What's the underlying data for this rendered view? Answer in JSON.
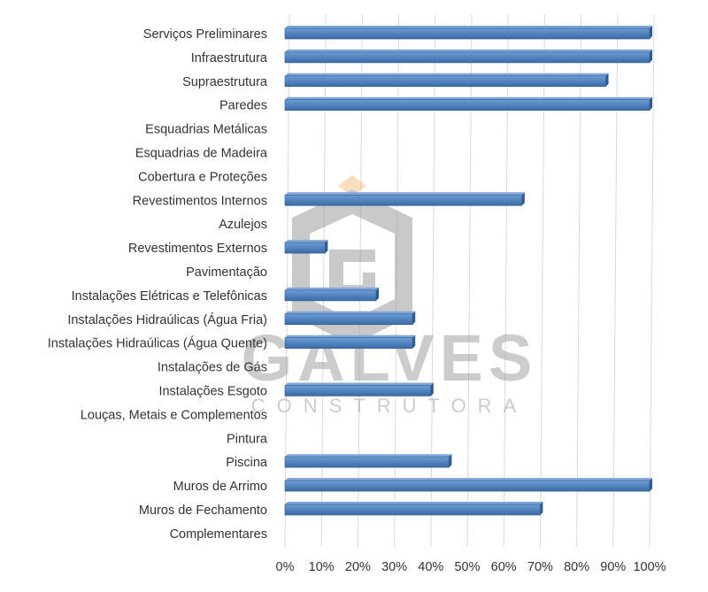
{
  "chart_data": {
    "type": "bar",
    "orientation": "horizontal",
    "categories": [
      "Serviços Preliminares",
      "Infraestrutura",
      "Supraestrutura",
      "Paredes",
      "Esquadrias Metálicas",
      "Esquadrias de Madeira",
      "Cobertura e Proteções",
      "Revestimentos Internos",
      "Azulejos",
      "Revestimentos Externos",
      "Pavimentação",
      "Instalações Elétricas e Telefônicas",
      "Instalações Hidraúlicas (Água Fria)",
      "Instalações Hidraúlicas (Água Quente)",
      "Instalações de Gás",
      "Instalações Esgoto",
      "Louças, Metais e Complementos",
      "Pintura",
      "Piscina",
      "Muros de Arrimo",
      "Muros de Fechamento",
      "Complementares"
    ],
    "values": [
      100,
      100,
      88,
      100,
      0,
      0,
      0,
      65,
      0,
      11,
      0,
      25,
      35,
      35,
      0,
      40,
      0,
      0,
      45,
      100,
      70,
      0
    ],
    "xlim": [
      0,
      100
    ],
    "x_ticks": [
      "0%",
      "10%",
      "20%",
      "30%",
      "40%",
      "50%",
      "60%",
      "70%",
      "80%",
      "90%",
      "100%"
    ],
    "grid": true,
    "legend": "none",
    "bar_color": "#4f81bd"
  },
  "watermark": {
    "brand": "GALVES",
    "sub": "CONSTRUTORA",
    "registered": "®"
  }
}
